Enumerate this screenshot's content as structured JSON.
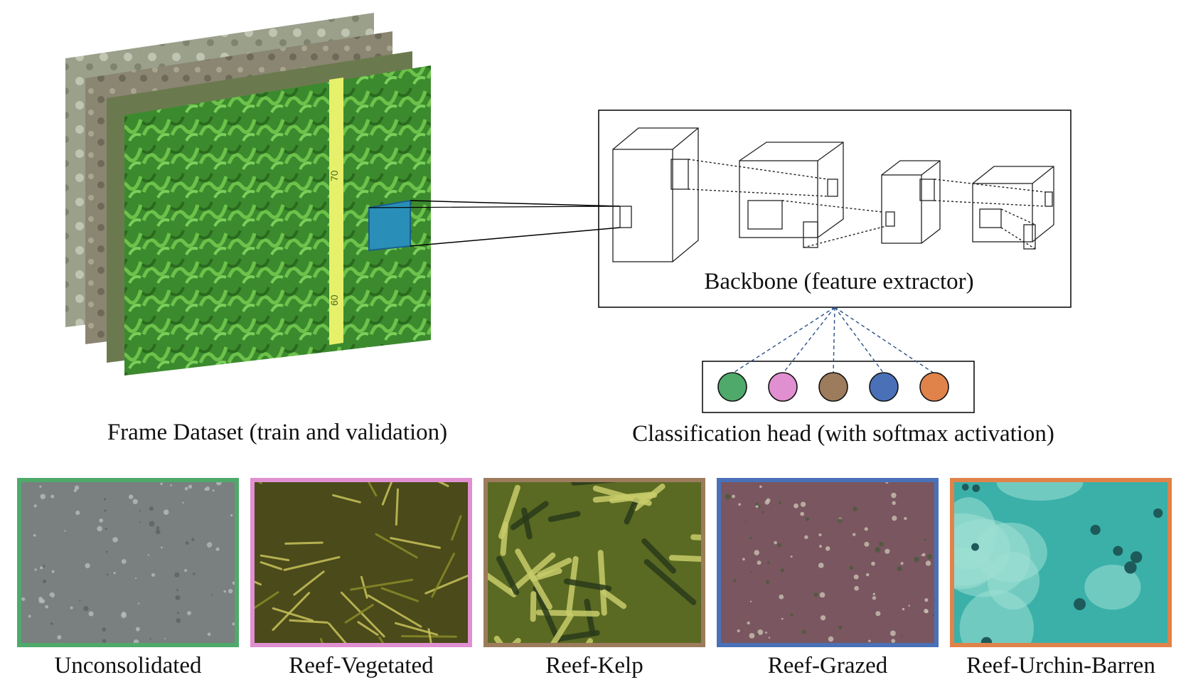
{
  "dataset_label": "Frame Dataset (train and validation)",
  "tape_marks": [
    "70",
    "60"
  ],
  "backbone_label": "Backbone (feature extractor)",
  "head_label": "Classification head (with softmax activation)",
  "classes": [
    {
      "label": "Unconsolidated",
      "color": "#4ea96a"
    },
    {
      "label": "Reef-Vegetated",
      "color": "#e08fd0"
    },
    {
      "label": "Reef-Kelp",
      "color": "#9c7c5c"
    },
    {
      "label": "Reef-Grazed",
      "color": "#4a70b8"
    },
    {
      "label": "Reef-Urchin-Barren",
      "color": "#e0834a"
    }
  ],
  "colors": {
    "patch": "#2a8fb8",
    "kelp_green": "#3f8f2a",
    "tape": "#e6f06a",
    "dashed_line": "#2a4f8a"
  }
}
